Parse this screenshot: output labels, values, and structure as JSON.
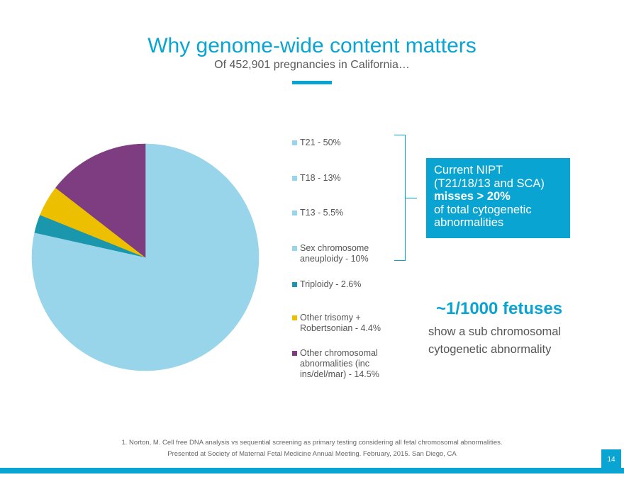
{
  "header": {
    "title": "Why genome-wide content matters",
    "subtitle": "Of 452,901 pregnancies in California…"
  },
  "chart_data": {
    "type": "pie",
    "labels": [
      "T21 - 50%",
      "T18 - 13%",
      "T13 - 5.5%",
      "Sex chromosome aneuploidy - 10%",
      "Triploidy - 2.6%",
      "Other trisomy + Robertsonian - 4.4%",
      "Other chromosomal abnormalities (inc ins/del/mar) - 14.5%"
    ],
    "legend_lines": [
      [
        "T21 - 50%"
      ],
      [
        "T18 - 13%"
      ],
      [
        "T13 - 5.5%"
      ],
      [
        "Sex chromosome",
        "aneuploidy - 10%"
      ],
      [
        "Triploidy - 2.6%"
      ],
      [
        "Other trisomy +",
        "Robertsonian - 4.4%"
      ],
      [
        "Other chromosomal",
        "abnormalities (inc",
        "ins/del/mar) - 14.5%"
      ]
    ],
    "values": [
      50,
      13,
      5.5,
      10,
      2.6,
      4.4,
      14.5
    ],
    "colors": [
      "#99d5ea",
      "#99d5ea",
      "#99d5ea",
      "#99d5ea",
      "#1a97ac",
      "#ecc000",
      "#7d3d80"
    ],
    "legend_placement": "right"
  },
  "callout": {
    "lines": [
      "Current NIPT",
      "(T21/18/13 and SCA)",
      "misses > 20%",
      "of total cytogenetic",
      "abnormalities"
    ]
  },
  "stat": {
    "headline": "~1/1000 fetuses",
    "lines": [
      "show a sub chromosomal",
      "cytogenetic abnormality"
    ]
  },
  "footnote": {
    "lines": [
      "1. Norton, M. Cell free DNA analysis vs sequential screening as primary testing considering all fetal chromosomal abnormalities.",
      "Presented at Society of Maternal Fetal Medicine Annual Meeting. February, 2015. San Diego, CA"
    ]
  },
  "page_number": "14"
}
